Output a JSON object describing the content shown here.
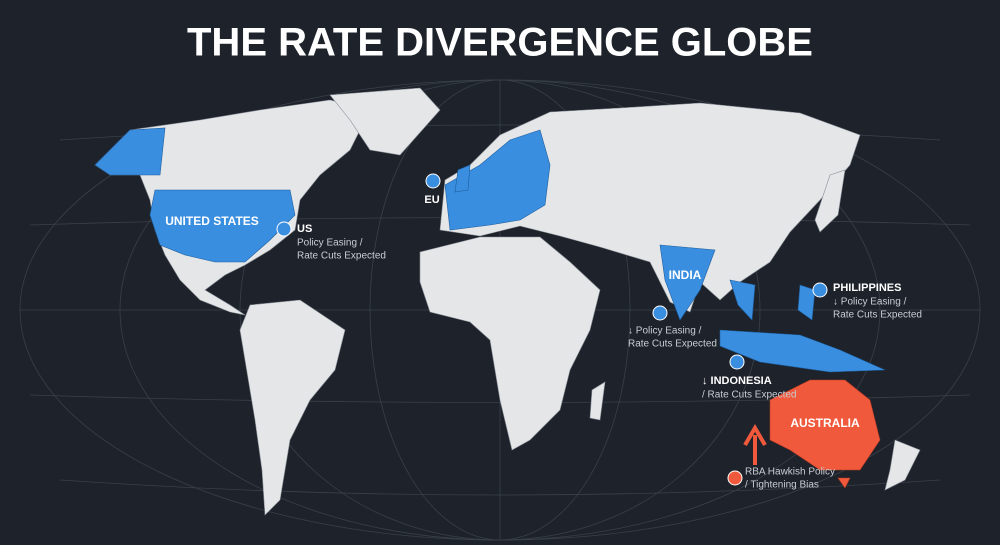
{
  "title": "THE RATE DIVERGENCE GLOBE",
  "map_labels": [
    "UNITED STATES",
    "INDIA",
    "AUSTRALIA"
  ],
  "callouts": [
    {
      "name": "US",
      "lines": [
        "Policy Easing /",
        "Rate Cuts Expected"
      ]
    },
    {
      "name": "EU"
    },
    {
      "lines": [
        "↓ Policy Easing /",
        "Rate Cuts Expected"
      ]
    },
    {
      "name": "PHILIPPINES",
      "lines": [
        "↓ Policy Easing /",
        "Rate Cuts Expected"
      ]
    },
    {
      "name": "↓ INDONESIA",
      "lines": [
        "/ Rate Cuts Expected"
      ]
    },
    {
      "lines": [
        "RBA Hawkish Policy",
        "/ Tightening Bias"
      ]
    }
  ]
}
